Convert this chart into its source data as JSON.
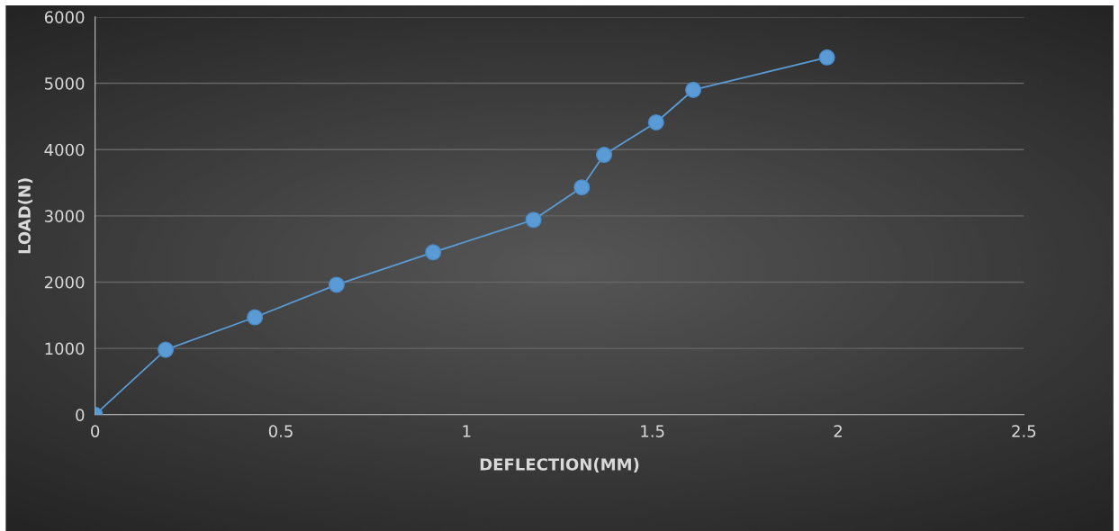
{
  "chart_data": {
    "type": "line",
    "xlabel": "DEFLECTION(MM)",
    "ylabel": "LOAD(N)",
    "x": [
      0,
      0.19,
      0.43,
      0.65,
      0.91,
      1.18,
      1.31,
      1.37,
      1.51,
      1.61,
      1.97
    ],
    "series": [
      {
        "color": "#5b9bd5",
        "values": [
          0,
          980,
          1470,
          1960,
          2450,
          2940,
          3430,
          3920,
          4410,
          4900,
          5390
        ]
      }
    ],
    "xlim": [
      0,
      2.5
    ],
    "xticks": [
      0,
      0.5,
      1,
      1.5,
      2,
      2.5
    ],
    "ylim": [
      0,
      6000
    ],
    "yticks": [
      0,
      1000,
      2000,
      3000,
      4000,
      5000,
      6000
    ],
    "grid": "y",
    "marker": "circle",
    "line_style": "solid"
  }
}
